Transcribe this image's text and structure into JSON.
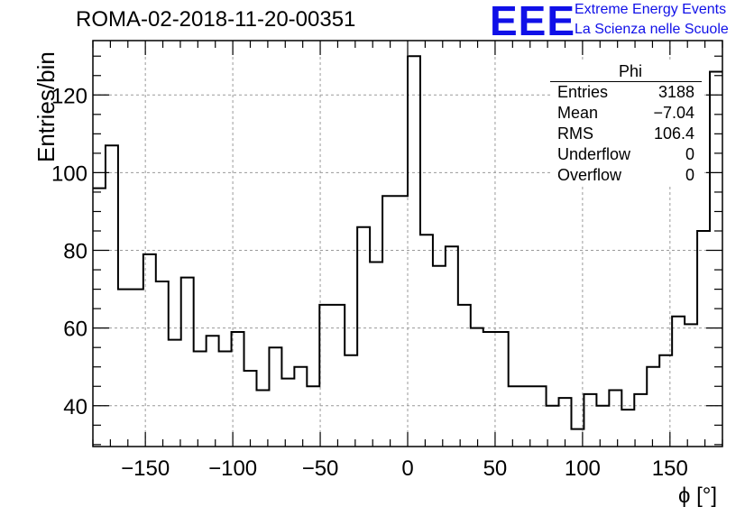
{
  "title": "ROMA-02-2018-11-20-00351",
  "logo": {
    "mark": "EEE",
    "line1": "Extreme Energy Events",
    "line2": "La Scienza nelle Scuole"
  },
  "stats_box": {
    "title": "Phi",
    "rows": [
      {
        "label": "Entries",
        "value": "3188"
      },
      {
        "label": "Mean",
        "value": "−7.04"
      },
      {
        "label": "RMS",
        "value": "106.4"
      },
      {
        "label": "Underflow",
        "value": "0"
      },
      {
        "label": "Overflow",
        "value": "0"
      }
    ]
  },
  "chart_data": {
    "type": "histogram",
    "title": "ROMA-02-2018-11-20-00351",
    "xlabel": "ϕ [°]",
    "ylabel": "Entries/bin",
    "xlim": [
      -180,
      180
    ],
    "ylim": [
      29.5,
      134
    ],
    "bin_width": 7.2,
    "x_ticks": [
      -150,
      -100,
      -50,
      0,
      50,
      100,
      150
    ],
    "y_ticks": [
      40,
      60,
      80,
      100,
      120
    ],
    "grid": true,
    "bins_start": -180,
    "values": [
      96,
      107,
      70,
      70,
      79,
      72,
      57,
      73,
      54,
      58,
      54,
      59,
      49,
      44,
      55,
      47,
      50,
      45,
      66,
      66,
      53,
      86,
      77,
      94,
      94,
      130,
      84,
      76,
      81,
      66,
      60,
      59,
      59,
      45,
      45,
      45,
      40,
      42,
      34,
      43,
      40,
      44,
      39,
      43,
      50,
      53,
      63,
      61,
      85,
      126
    ]
  }
}
